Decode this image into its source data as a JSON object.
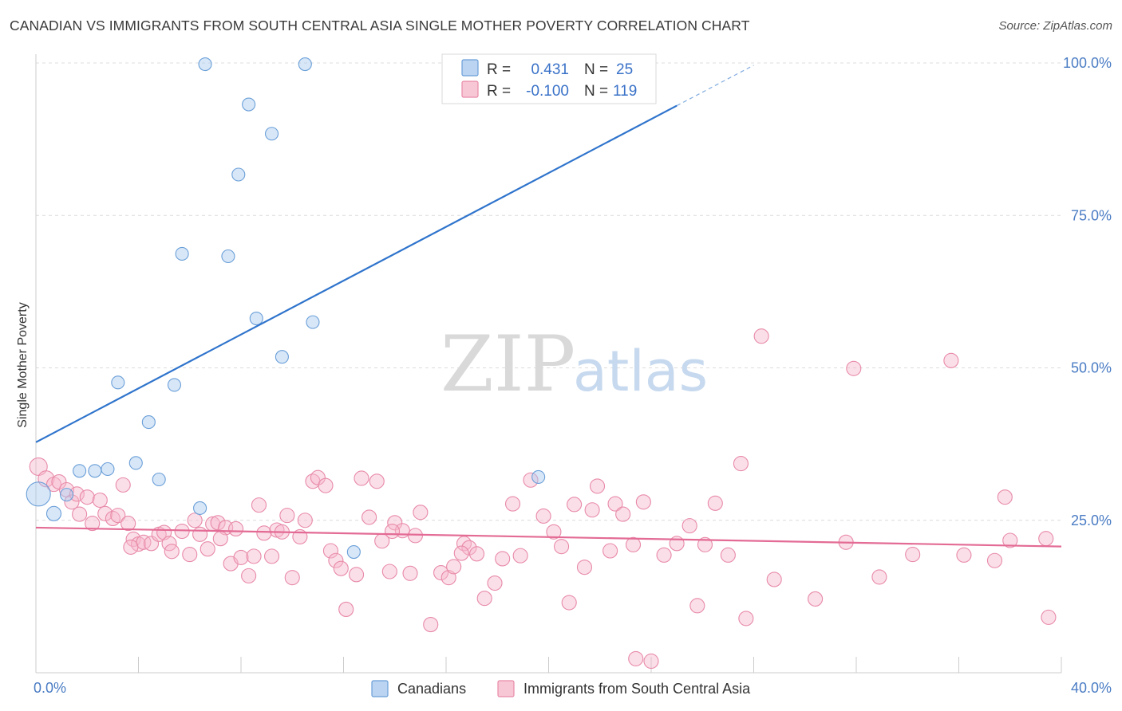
{
  "header": {
    "title": "CANADIAN VS IMMIGRANTS FROM SOUTH CENTRAL ASIA SINGLE MOTHER POVERTY CORRELATION CHART",
    "source": "Source: ZipAtlas.com"
  },
  "watermark": {
    "zip": "ZIP",
    "atlas": "atlas"
  },
  "stats": [
    {
      "r_label": "R =",
      "r_value": "0.431",
      "n_label": "N =",
      "n_value": "25",
      "color": "#a9c9ef"
    },
    {
      "r_label": "R =",
      "r_value": "-0.100",
      "n_label": "N =",
      "n_value": "119",
      "color": "#f6b9cc"
    }
  ],
  "chart_data": {
    "type": "scatter",
    "xlabel": "",
    "ylabel": "Single Mother Poverty",
    "xlim": [
      0,
      40
    ],
    "ylim": [
      0,
      100
    ],
    "x_tick_labels": [
      "0.0%",
      "40.0%"
    ],
    "y_ticks": [
      {
        "value": 25,
        "label": "25.0%"
      },
      {
        "value": 50,
        "label": "50.0%"
      },
      {
        "value": 75,
        "label": "75.0%"
      },
      {
        "value": 100,
        "label": "100.0%"
      }
    ],
    "grid": "horizontal dashed",
    "legend": {
      "position": "bottom-center"
    },
    "series": [
      {
        "name": "Canadians",
        "color": "#a9c9ef",
        "edge_color": "#6a9fd8",
        "line_color": "#2f74cc",
        "trend": {
          "x0": 0,
          "y0": 37.8,
          "x1": 25,
          "y1": 93.0,
          "dash_to_x": 28
        },
        "points": [
          [
            6.6,
            99.8
          ],
          [
            10.5,
            99.8
          ],
          [
            20.9,
            99.8
          ],
          [
            8.3,
            93.2
          ],
          [
            9.2,
            88.4
          ],
          [
            7.9,
            81.7
          ],
          [
            5.7,
            68.7
          ],
          [
            7.5,
            68.3
          ],
          [
            8.6,
            58.1
          ],
          [
            10.8,
            57.5
          ],
          [
            9.6,
            51.8
          ],
          [
            3.2,
            47.6
          ],
          [
            5.4,
            47.2
          ],
          [
            4.4,
            41.1
          ],
          [
            1.7,
            33.1
          ],
          [
            2.3,
            33.1
          ],
          [
            2.8,
            33.4
          ],
          [
            3.9,
            34.4
          ],
          [
            4.8,
            31.7
          ],
          [
            0.1,
            29.3
          ],
          [
            1.2,
            29.2
          ],
          [
            0.7,
            26.1
          ],
          [
            6.4,
            27.0
          ],
          [
            12.4,
            19.8
          ],
          [
            19.6,
            32.1
          ]
        ],
        "sizes": [
          8,
          8,
          8,
          8,
          8,
          8,
          8,
          8,
          8,
          8,
          8,
          8,
          8,
          8,
          8,
          8,
          8,
          8,
          8,
          15,
          8,
          9,
          8,
          8,
          8
        ]
      },
      {
        "name": "Immigrants from South Central Asia",
        "color": "#f6b9cc",
        "edge_color": "#e88aa8",
        "line_color": "#e36b95",
        "trend": {
          "x0": 0,
          "y0": 23.8,
          "x1": 40,
          "y1": 20.7
        },
        "points": [
          [
            0.1,
            33.8
          ],
          [
            0.4,
            31.8
          ],
          [
            0.7,
            30.9
          ],
          [
            0.9,
            31.3
          ],
          [
            1.2,
            30.0
          ],
          [
            1.4,
            28.0
          ],
          [
            1.6,
            29.3
          ],
          [
            1.7,
            26.0
          ],
          [
            2.0,
            28.8
          ],
          [
            2.2,
            24.5
          ],
          [
            2.5,
            28.3
          ],
          [
            2.7,
            26.1
          ],
          [
            3.0,
            25.3
          ],
          [
            3.2,
            25.8
          ],
          [
            3.4,
            30.8
          ],
          [
            3.6,
            24.5
          ],
          [
            3.8,
            21.9
          ],
          [
            4.0,
            21.1
          ],
          [
            4.2,
            21.4
          ],
          [
            4.5,
            21.2
          ],
          [
            4.8,
            22.7
          ],
          [
            5.0,
            23.0
          ],
          [
            5.2,
            21.2
          ],
          [
            5.3,
            19.9
          ],
          [
            5.7,
            23.2
          ],
          [
            6.0,
            19.4
          ],
          [
            6.2,
            25.0
          ],
          [
            6.4,
            22.7
          ],
          [
            6.7,
            20.3
          ],
          [
            6.9,
            24.4
          ],
          [
            7.1,
            24.6
          ],
          [
            7.4,
            23.8
          ],
          [
            7.6,
            17.9
          ],
          [
            7.8,
            23.6
          ],
          [
            8.0,
            18.9
          ],
          [
            8.3,
            15.9
          ],
          [
            8.5,
            19.1
          ],
          [
            8.7,
            27.5
          ],
          [
            8.9,
            22.9
          ],
          [
            9.2,
            19.1
          ],
          [
            9.4,
            23.4
          ],
          [
            9.6,
            23.1
          ],
          [
            9.8,
            25.8
          ],
          [
            10.0,
            15.6
          ],
          [
            10.3,
            22.3
          ],
          [
            10.5,
            25.0
          ],
          [
            10.8,
            31.4
          ],
          [
            11.0,
            32.0
          ],
          [
            11.3,
            30.7
          ],
          [
            11.5,
            20.0
          ],
          [
            11.7,
            18.4
          ],
          [
            11.9,
            17.1
          ],
          [
            12.1,
            10.4
          ],
          [
            12.5,
            16.1
          ],
          [
            12.7,
            31.9
          ],
          [
            13.0,
            25.5
          ],
          [
            13.3,
            31.4
          ],
          [
            13.5,
            21.6
          ],
          [
            13.8,
            16.6
          ],
          [
            14.0,
            24.6
          ],
          [
            14.3,
            23.3
          ],
          [
            14.6,
            16.3
          ],
          [
            14.8,
            22.5
          ],
          [
            15.0,
            26.3
          ],
          [
            15.4,
            7.9
          ],
          [
            15.8,
            16.4
          ],
          [
            16.1,
            15.6
          ],
          [
            16.3,
            17.4
          ],
          [
            16.7,
            21.2
          ],
          [
            16.9,
            20.5
          ],
          [
            17.2,
            19.5
          ],
          [
            17.5,
            12.2
          ],
          [
            17.9,
            14.7
          ],
          [
            18.2,
            18.7
          ],
          [
            18.6,
            27.7
          ],
          [
            18.9,
            19.2
          ],
          [
            19.3,
            31.6
          ],
          [
            19.8,
            25.7
          ],
          [
            20.2,
            23.1
          ],
          [
            20.5,
            20.7
          ],
          [
            20.8,
            11.5
          ],
          [
            21.0,
            27.6
          ],
          [
            21.4,
            17.3
          ],
          [
            21.7,
            26.7
          ],
          [
            21.9,
            30.6
          ],
          [
            22.4,
            20.0
          ],
          [
            22.6,
            27.7
          ],
          [
            22.9,
            26.0
          ],
          [
            23.3,
            21.0
          ],
          [
            23.4,
            2.3
          ],
          [
            23.7,
            28.0
          ],
          [
            24.0,
            1.9
          ],
          [
            24.5,
            19.3
          ],
          [
            25.0,
            21.2
          ],
          [
            25.5,
            24.1
          ],
          [
            25.8,
            11.0
          ],
          [
            26.5,
            27.8
          ],
          [
            27.0,
            19.3
          ],
          [
            27.5,
            34.3
          ],
          [
            27.7,
            8.9
          ],
          [
            28.3,
            55.2
          ],
          [
            31.9,
            49.9
          ],
          [
            28.8,
            15.3
          ],
          [
            30.4,
            12.1
          ],
          [
            31.6,
            21.4
          ],
          [
            32.9,
            15.7
          ],
          [
            34.2,
            19.4
          ],
          [
            35.7,
            51.2
          ],
          [
            36.2,
            19.3
          ],
          [
            37.4,
            18.4
          ],
          [
            37.8,
            28.8
          ],
          [
            38.0,
            21.7
          ],
          [
            39.4,
            22.0
          ],
          [
            39.5,
            9.1
          ],
          [
            26.1,
            21.0
          ],
          [
            13.9,
            23.2
          ],
          [
            3.7,
            20.6
          ],
          [
            7.2,
            22.0
          ],
          [
            16.6,
            19.6
          ]
        ],
        "sizes": [
          11,
          10,
          9,
          9,
          9,
          9,
          9,
          9,
          9,
          9,
          9,
          9,
          9,
          9,
          9,
          9,
          9,
          9,
          9,
          9,
          9,
          9,
          9,
          9,
          9,
          9,
          9,
          9,
          9,
          9,
          9,
          9,
          9,
          9,
          9,
          9,
          9,
          9,
          9,
          9,
          9,
          9,
          9,
          9,
          9,
          9,
          9,
          9,
          9,
          9,
          9,
          9,
          9,
          9,
          9,
          9,
          9,
          9,
          9,
          9,
          9,
          9,
          9,
          9,
          9,
          9,
          9,
          9,
          9,
          9,
          9,
          9,
          9,
          9,
          9,
          9,
          9,
          9,
          9,
          9,
          9,
          9,
          9,
          9,
          9,
          9,
          9,
          9,
          9,
          9,
          9,
          9,
          9,
          9,
          9,
          9,
          9,
          9,
          9,
          9,
          9,
          9,
          9,
          9,
          9,
          9,
          9,
          9,
          9,
          9,
          9,
          9,
          9,
          9,
          9,
          9,
          9,
          9,
          9
        ]
      }
    ]
  }
}
